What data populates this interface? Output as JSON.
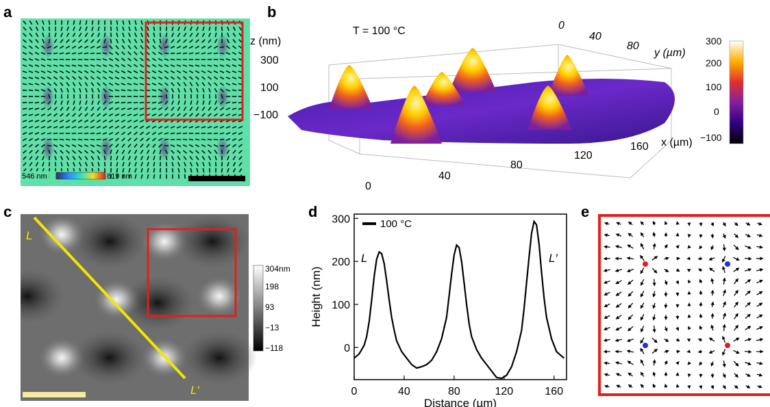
{
  "panels": {
    "a": "a",
    "b": "b",
    "c": "c",
    "d": "d",
    "e": "e"
  },
  "panel_a": {
    "colorbar_min": "546 nm",
    "colorbar_max": "819 nm"
  },
  "panel_b": {
    "temperature_label": "T = 100 °C",
    "z_axis_label": "z (nm)",
    "z_ticks": [
      "300",
      "100",
      "−100"
    ],
    "x_axis_label": "x (µm)",
    "x_ticks": [
      "0",
      "40",
      "80",
      "120",
      "160"
    ],
    "y_axis_label": "y (µm)",
    "y_ticks": [
      "0",
      "40",
      "80"
    ],
    "colorbar_ticks": [
      "300",
      "200",
      "100",
      "0",
      "−100"
    ]
  },
  "panel_c": {
    "line_start_label": "L",
    "line_end_label": "L′",
    "colorbar_ticks": [
      "304nm",
      "198",
      "93",
      "−13",
      "−118"
    ]
  },
  "chart_data": {
    "type": "line",
    "legend": "100 °C",
    "xlabel": "Distance (µm)",
    "ylabel": "Height (nm)",
    "xlim": [
      0,
      170
    ],
    "ylim": [
      -75,
      310
    ],
    "x_ticks": [
      "0",
      "40",
      "80",
      "120",
      "160"
    ],
    "y_ticks": [
      "0",
      "100",
      "200",
      "300"
    ],
    "start_label": "L",
    "end_label": "L′",
    "series": [
      {
        "x": [
          0,
          4,
          8,
          10,
          12,
          14,
          16,
          18,
          20,
          22,
          24,
          26,
          28,
          30,
          32,
          34,
          38,
          42,
          46,
          50,
          54,
          58,
          62,
          66,
          70,
          74,
          76,
          78,
          80,
          82,
          84,
          86,
          88,
          90,
          92,
          94,
          98,
          102,
          106,
          110,
          114,
          118,
          122,
          126,
          130,
          134,
          136,
          138,
          140,
          142,
          144,
          146,
          148,
          150,
          152,
          154,
          158,
          162,
          166,
          168
        ],
        "values": [
          -25,
          -15,
          5,
          25,
          60,
          110,
          165,
          205,
          222,
          218,
          195,
          155,
          110,
          70,
          40,
          15,
          -10,
          -25,
          -40,
          -48,
          -45,
          -40,
          -30,
          -10,
          20,
          70,
          120,
          170,
          215,
          238,
          232,
          200,
          150,
          100,
          55,
          25,
          -5,
          -25,
          -40,
          -55,
          -70,
          -72,
          -65,
          -45,
          -10,
          40,
          90,
          150,
          210,
          265,
          293,
          285,
          240,
          175,
          115,
          70,
          20,
          -10,
          -20,
          -25
        ]
      }
    ]
  }
}
